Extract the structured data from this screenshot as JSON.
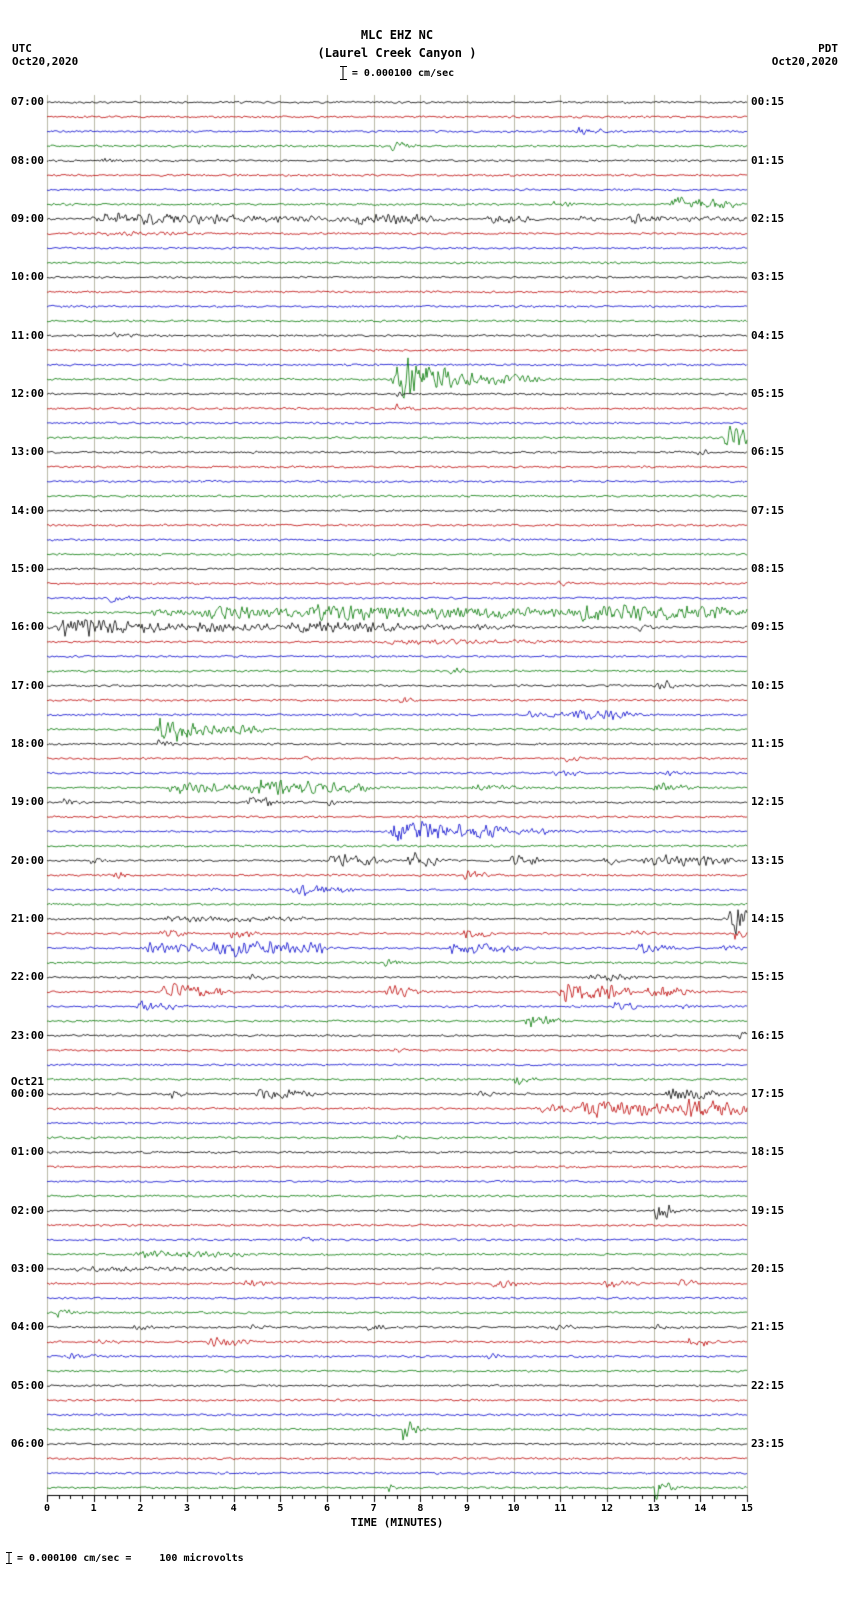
{
  "header": {
    "title": "MLC EHZ NC",
    "subtitle": "(Laurel Creek Canyon )",
    "scale_text": "= 0.000100 cm/sec",
    "utc_label": "UTC",
    "utc_date": "Oct20,2020",
    "pdt_label": "PDT",
    "pdt_date": "Oct20,2020"
  },
  "footer": {
    "axis_title": "TIME (MINUTES)",
    "scale_text": "= 0.000100 cm/sec =",
    "microvolts": "100 microvolts"
  },
  "chart_data": {
    "type": "line",
    "subtype": "heliplot-seismogram",
    "title": "MLC EHZ NC (Laurel Creek Canyon ) webicorder",
    "xlabel": "TIME (MINUTES)",
    "x_range": [
      0,
      15
    ],
    "x_tick_labels": [
      "0",
      "1",
      "2",
      "3",
      "4",
      "5",
      "6",
      "7",
      "8",
      "9",
      "10",
      "11",
      "12",
      "13",
      "14",
      "15"
    ],
    "lines_per_hour": 4,
    "trace_colors": [
      "#000000",
      "#bb0000",
      "#0000cc",
      "#007700"
    ],
    "grid_color": "#b9b9a6",
    "base_amp": 1.2,
    "seed": 42,
    "left_labels": [
      {
        "label": "07:00"
      },
      {
        "label": "08:00"
      },
      {
        "label": "09:00"
      },
      {
        "label": "10:00"
      },
      {
        "label": "11:00"
      },
      {
        "label": "12:00"
      },
      {
        "label": "13:00"
      },
      {
        "label": "14:00"
      },
      {
        "label": "15:00"
      },
      {
        "label": "16:00"
      },
      {
        "label": "17:00"
      },
      {
        "label": "18:00"
      },
      {
        "label": "19:00"
      },
      {
        "label": "20:00"
      },
      {
        "label": "21:00"
      },
      {
        "label": "22:00"
      },
      {
        "label": "23:00"
      },
      {
        "label": "00:00",
        "date": "Oct21"
      },
      {
        "label": "01:00"
      },
      {
        "label": "02:00"
      },
      {
        "label": "03:00"
      },
      {
        "label": "04:00"
      },
      {
        "label": "05:00"
      },
      {
        "label": "06:00"
      }
    ],
    "right_labels": [
      "00:15",
      "01:15",
      "02:15",
      "03:15",
      "04:15",
      "05:15",
      "06:15",
      "07:15",
      "08:15",
      "09:15",
      "10:15",
      "11:15",
      "12:15",
      "13:15",
      "14:15",
      "15:15",
      "16:15",
      "17:15",
      "18:15",
      "19:15",
      "20:15",
      "21:15",
      "22:15",
      "23:15"
    ],
    "events": [
      [
        2,
        11.3,
        11.9,
        4
      ],
      [
        3,
        7.35,
        7.7,
        5
      ],
      [
        4,
        1.15,
        1.4,
        3
      ],
      [
        7,
        10.8,
        11.1,
        4
      ],
      [
        7,
        13.3,
        14.7,
        7
      ],
      [
        8,
        0.9,
        4.0,
        7
      ],
      [
        8,
        4.0,
        6.4,
        3
      ],
      [
        8,
        6.4,
        8.4,
        6
      ],
      [
        8,
        9.4,
        10.3,
        5
      ],
      [
        8,
        11.3,
        11.7,
        4
      ],
      [
        8,
        12.4,
        13.2,
        5
      ],
      [
        8,
        13.2,
        15,
        2.5
      ],
      [
        9,
        1.0,
        3.0,
        1.5
      ],
      [
        16,
        1.4,
        1.8,
        3
      ],
      [
        19,
        7.35,
        8.6,
        24
      ],
      [
        19,
        8.6,
        10.5,
        6
      ],
      [
        20,
        7.45,
        7.62,
        3
      ],
      [
        21,
        7.45,
        7.65,
        5
      ],
      [
        23,
        14.5,
        14.95,
        18
      ],
      [
        24,
        13.9,
        14.15,
        3
      ],
      [
        33,
        10.9,
        11.2,
        3
      ],
      [
        34,
        1.3,
        1.7,
        4
      ],
      [
        35,
        2.2,
        3.2,
        4
      ],
      [
        35,
        3.2,
        5.3,
        7
      ],
      [
        35,
        5.3,
        8.0,
        9
      ],
      [
        35,
        8.0,
        11.0,
        7
      ],
      [
        35,
        11.0,
        15,
        9
      ],
      [
        36,
        0,
        2.6,
        9
      ],
      [
        36,
        2.6,
        5.0,
        5
      ],
      [
        36,
        5.0,
        7.6,
        6
      ],
      [
        36,
        7.6,
        10.0,
        2.5
      ],
      [
        36,
        12.6,
        13.0,
        4
      ],
      [
        37,
        7.0,
        11.0,
        1.8
      ],
      [
        39,
        8.6,
        8.9,
        4
      ],
      [
        40,
        13.0,
        13.4,
        6
      ],
      [
        41,
        7.55,
        7.75,
        4
      ],
      [
        42,
        10.2,
        11.2,
        3
      ],
      [
        42,
        11.2,
        12.4,
        7
      ],
      [
        43,
        2.3,
        3.3,
        14
      ],
      [
        43,
        3.3,
        4.6,
        6
      ],
      [
        44,
        2.35,
        2.55,
        6
      ],
      [
        45,
        5.5,
        5.7,
        3
      ],
      [
        45,
        11.1,
        11.3,
        3
      ],
      [
        46,
        10.8,
        11.4,
        3
      ],
      [
        46,
        13.2,
        13.5,
        3
      ],
      [
        47,
        2.5,
        4.2,
        5
      ],
      [
        47,
        4.2,
        6.8,
        8
      ],
      [
        47,
        9.0,
        10.0,
        3
      ],
      [
        47,
        12.9,
        13.6,
        6
      ],
      [
        48,
        0.3,
        0.6,
        4
      ],
      [
        48,
        4.2,
        4.9,
        6
      ],
      [
        48,
        6.0,
        6.2,
        3
      ],
      [
        50,
        7.3,
        8.6,
        14
      ],
      [
        50,
        8.6,
        9.9,
        8
      ],
      [
        50,
        9.9,
        11.0,
        3
      ],
      [
        52,
        0.9,
        1.2,
        4
      ],
      [
        52,
        6.0,
        7.1,
        6
      ],
      [
        52,
        7.7,
        8.3,
        8
      ],
      [
        52,
        9.9,
        10.5,
        6
      ],
      [
        52,
        11.9,
        12.3,
        4
      ],
      [
        52,
        12.7,
        14.6,
        6
      ],
      [
        53,
        1.4,
        1.7,
        4
      ],
      [
        53,
        8.9,
        9.3,
        5
      ],
      [
        54,
        3.4,
        3.7,
        3
      ],
      [
        54,
        5.2,
        6.4,
        6
      ],
      [
        56,
        2.3,
        5.5,
        2.5
      ],
      [
        56,
        14.6,
        15.0,
        20
      ],
      [
        57,
        2.4,
        2.8,
        6
      ],
      [
        57,
        3.9,
        4.3,
        6
      ],
      [
        57,
        8.9,
        9.4,
        5
      ],
      [
        57,
        12.5,
        12.8,
        4
      ],
      [
        57,
        14.7,
        15,
        6
      ],
      [
        58,
        2.0,
        3.4,
        6
      ],
      [
        58,
        3.4,
        5.9,
        9
      ],
      [
        58,
        8.5,
        10.1,
        6
      ],
      [
        58,
        12.6,
        13.3,
        5
      ],
      [
        58,
        14.4,
        14.8,
        4
      ],
      [
        59,
        7.2,
        7.5,
        4
      ],
      [
        60,
        4.3,
        4.6,
        3
      ],
      [
        60,
        11.4,
        12.6,
        4
      ],
      [
        61,
        2.4,
        3.8,
        8
      ],
      [
        61,
        7.2,
        7.8,
        8
      ],
      [
        61,
        10.9,
        12.4,
        10
      ],
      [
        61,
        12.8,
        13.7,
        8
      ],
      [
        62,
        1.9,
        2.7,
        6
      ],
      [
        62,
        12.1,
        12.7,
        4
      ],
      [
        62,
        13.4,
        13.7,
        3
      ],
      [
        63,
        10.2,
        10.9,
        6
      ],
      [
        64,
        14.8,
        15,
        7
      ],
      [
        65,
        7.4,
        7.6,
        3
      ],
      [
        67,
        9.95,
        10.25,
        7
      ],
      [
        68,
        2.6,
        2.9,
        4
      ],
      [
        68,
        4.4,
        5.6,
        6
      ],
      [
        68,
        9.2,
        9.5,
        3
      ],
      [
        68,
        13.2,
        14.4,
        6
      ],
      [
        69,
        10.4,
        11.3,
        4
      ],
      [
        69,
        11.3,
        13.5,
        9
      ],
      [
        69,
        13.5,
        15,
        10
      ],
      [
        71,
        7.4,
        7.6,
        3
      ],
      [
        76,
        13.0,
        13.35,
        12
      ],
      [
        78,
        5.4,
        5.7,
        3
      ],
      [
        79,
        1.8,
        4.2,
        3
      ],
      [
        80,
        0.2,
        4.0,
        1.8
      ],
      [
        81,
        4.2,
        4.7,
        4
      ],
      [
        81,
        9.5,
        10.1,
        4
      ],
      [
        81,
        11.9,
        12.5,
        4
      ],
      [
        81,
        13.5,
        14.0,
        3
      ],
      [
        83,
        0.2,
        0.5,
        4
      ],
      [
        84,
        1.8,
        2.2,
        3
      ],
      [
        84,
        4.3,
        4.7,
        3
      ],
      [
        84,
        6.8,
        7.2,
        3
      ],
      [
        84,
        10.8,
        11.2,
        3
      ],
      [
        84,
        13.0,
        13.4,
        3
      ],
      [
        85,
        1.1,
        1.4,
        4
      ],
      [
        85,
        3.4,
        4.3,
        4
      ],
      [
        85,
        13.7,
        14.2,
        5
      ],
      [
        86,
        0.4,
        1.0,
        3
      ],
      [
        86,
        9.4,
        9.7,
        3
      ],
      [
        91,
        7.6,
        7.85,
        14
      ],
      [
        95,
        7.3,
        7.5,
        3
      ],
      [
        95,
        13.0,
        13.3,
        13
      ]
    ]
  }
}
